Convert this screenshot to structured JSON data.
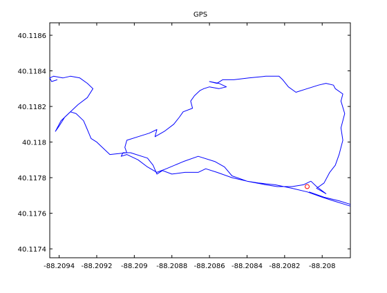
{
  "chart_data": {
    "type": "line",
    "title": "GPS",
    "xlabel": "",
    "ylabel": "",
    "xlim": [
      -88.20945,
      -88.20785
    ],
    "ylim": [
      40.11735,
      40.11867
    ],
    "xticks": [
      -88.2094,
      -88.2092,
      -88.209,
      -88.2088,
      -88.2086,
      -88.2084,
      -88.2082,
      -88.208
    ],
    "xtick_labels": [
      "-88.2094",
      "-88.2092",
      "-88.209",
      "-88.2088",
      "-88.2086",
      "-88.2084",
      "-88.2082",
      "-88.208"
    ],
    "yticks": [
      40.1174,
      40.1176,
      40.1178,
      40.118,
      40.1182,
      40.1184,
      40.1186
    ],
    "ytick_labels": [
      "40.1174",
      "40.1176",
      "40.1178",
      "40.118",
      "40.1182",
      "40.1184",
      "40.1186"
    ],
    "grid": false,
    "legend": false,
    "series": [
      {
        "color": "#0000ff",
        "points": [
          [
            -88.20806,
            40.11778
          ],
          [
            -88.20803,
            40.11775
          ],
          [
            -88.20798,
            40.11771
          ],
          [
            -88.20803,
            40.11774
          ],
          [
            -88.20799,
            40.11777
          ],
          [
            -88.20796,
            40.11783
          ],
          [
            -88.20793,
            40.11787
          ],
          [
            -88.20791,
            40.11793
          ],
          [
            -88.20789,
            40.11801
          ],
          [
            -88.2079,
            40.11808
          ],
          [
            -88.20788,
            40.11816
          ],
          [
            -88.2079,
            40.11823
          ],
          [
            -88.20789,
            40.11827
          ],
          [
            -88.20793,
            40.1183
          ],
          [
            -88.20794,
            40.11832
          ],
          [
            -88.20798,
            40.11833
          ],
          [
            -88.20802,
            40.11832
          ],
          [
            -88.20808,
            40.1183
          ],
          [
            -88.20814,
            40.11828
          ],
          [
            -88.20818,
            40.11831
          ],
          [
            -88.20821,
            40.11835
          ],
          [
            -88.20823,
            40.11837
          ],
          [
            -88.20827,
            40.11837
          ],
          [
            -88.2083,
            40.11837
          ],
          [
            -88.20839,
            40.11836
          ],
          [
            -88.20847,
            40.11835
          ],
          [
            -88.20853,
            40.11835
          ],
          [
            -88.20856,
            40.11833
          ],
          [
            -88.2086,
            40.11834
          ],
          [
            -88.20855,
            40.11833
          ],
          [
            -88.20851,
            40.11831
          ],
          [
            -88.20855,
            40.1183
          ],
          [
            -88.2086,
            40.11831
          ],
          [
            -88.20863,
            40.1183
          ],
          [
            -88.20865,
            40.11829
          ],
          [
            -88.20868,
            40.11826
          ],
          [
            -88.2087,
            40.11823
          ],
          [
            -88.20869,
            40.11819
          ],
          [
            -88.20874,
            40.11817
          ],
          [
            -88.20876,
            40.11814
          ],
          [
            -88.20879,
            40.1181
          ],
          [
            -88.20884,
            40.11806
          ],
          [
            -88.20889,
            40.11803
          ],
          [
            -88.20888,
            40.11807
          ],
          [
            -88.20892,
            40.11805
          ],
          [
            -88.20898,
            40.11803
          ],
          [
            -88.20904,
            40.11801
          ],
          [
            -88.20905,
            40.11797
          ],
          [
            -88.20904,
            40.11794
          ],
          [
            -88.20913,
            40.11793
          ],
          [
            -88.20916,
            40.11796
          ],
          [
            -88.2092,
            40.118
          ],
          [
            -88.20923,
            40.11802
          ],
          [
            -88.20925,
            40.11807
          ],
          [
            -88.20927,
            40.11812
          ],
          [
            -88.20931,
            40.11816
          ],
          [
            -88.20934,
            40.11817
          ],
          [
            -88.20937,
            40.11814
          ],
          [
            -88.2094,
            40.11809
          ],
          [
            -88.20942,
            40.11806
          ],
          [
            -88.20939,
            40.11812
          ],
          [
            -88.20935,
            40.11816
          ],
          [
            -88.2093,
            40.11821
          ],
          [
            -88.20925,
            40.11825
          ],
          [
            -88.20922,
            40.1183
          ],
          [
            -88.20925,
            40.11833
          ],
          [
            -88.20929,
            40.11836
          ],
          [
            -88.20934,
            40.11837
          ],
          [
            -88.20938,
            40.11836
          ],
          [
            -88.20943,
            40.11837
          ],
          [
            -88.20945,
            40.11836
          ],
          [
            -88.20944,
            40.11834
          ],
          [
            -88.20941,
            40.11835
          ]
        ]
      },
      {
        "color": "#0000ff",
        "points": [
          [
            -88.20806,
            40.11778
          ],
          [
            -88.2081,
            40.11776
          ],
          [
            -88.20816,
            40.11775
          ],
          [
            -88.20824,
            40.11775
          ],
          [
            -88.2083,
            40.11776
          ],
          [
            -88.2084,
            40.11778
          ],
          [
            -88.20848,
            40.1178
          ],
          [
            -88.20856,
            40.11783
          ],
          [
            -88.20862,
            40.11785
          ],
          [
            -88.20866,
            40.11783
          ],
          [
            -88.20873,
            40.11783
          ],
          [
            -88.2088,
            40.11782
          ],
          [
            -88.20885,
            40.11784
          ],
          [
            -88.20888,
            40.11782
          ],
          [
            -88.2089,
            40.11787
          ],
          [
            -88.20893,
            40.11791
          ],
          [
            -88.20902,
            40.11794
          ],
          [
            -88.20906,
            40.11794
          ],
          [
            -88.20907,
            40.11792
          ],
          [
            -88.20904,
            40.11793
          ],
          [
            -88.20898,
            40.1179
          ],
          [
            -88.20893,
            40.11786
          ],
          [
            -88.20888,
            40.11783
          ],
          [
            -88.20883,
            40.11785
          ],
          [
            -88.20874,
            40.11789
          ],
          [
            -88.20866,
            40.11792
          ],
          [
            -88.20857,
            40.11789
          ],
          [
            -88.20852,
            40.11786
          ],
          [
            -88.20848,
            40.11781
          ],
          [
            -88.2084,
            40.11778
          ],
          [
            -88.20834,
            40.11777
          ],
          [
            -88.20825,
            40.11776
          ],
          [
            -88.20816,
            40.11774
          ],
          [
            -88.20808,
            40.11772
          ],
          [
            -88.208,
            40.11769
          ],
          [
            -88.20794,
            40.11767
          ],
          [
            -88.20788,
            40.11765
          ],
          [
            -88.20785,
            40.11764
          ]
        ]
      },
      {
        "color": "#0000ff",
        "points": [
          [
            -88.20785,
            40.11765
          ],
          [
            -88.20791,
            40.11767
          ],
          [
            -88.20799,
            40.11769
          ],
          [
            -88.20807,
            40.11772
          ]
        ]
      }
    ],
    "start_marker": {
      "color": "#ff0000",
      "x": -88.20808,
      "y": 40.11775
    }
  }
}
